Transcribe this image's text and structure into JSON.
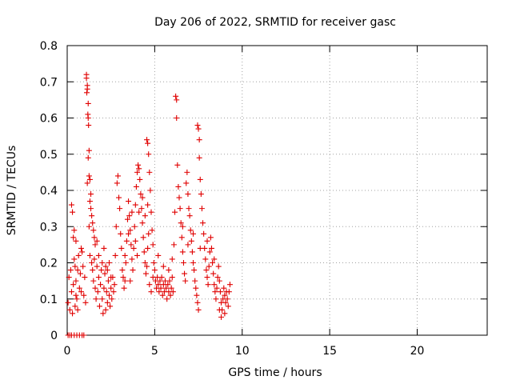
{
  "chart_data": {
    "type": "scatter",
    "title": "Day 206 of 2022, SRMTID for receiver gasc",
    "xlabel": "GPS time / hours",
    "ylabel": "SRMTID / TECUs",
    "xlim": [
      0,
      24
    ],
    "ylim": [
      0,
      0.8
    ],
    "xticks": [
      0,
      5,
      10,
      15,
      20
    ],
    "yticks": [
      0,
      0.1,
      0.2,
      0.3,
      0.4,
      0.5,
      0.6,
      0.7,
      0.8
    ],
    "xtick_labels": [
      "0",
      "5",
      "10",
      "15",
      "20"
    ],
    "ytick_labels": [
      "0",
      "0.1",
      "0.2",
      "0.3",
      "0.4",
      "0.5",
      "0.6",
      "0.7",
      "0.8"
    ],
    "grid": true,
    "marker": "+",
    "color": "#e00000",
    "series": [
      {
        "name": "SRMTID",
        "points": [
          [
            0.05,
            0.0
          ],
          [
            0.15,
            0.0
          ],
          [
            0.25,
            0.0
          ],
          [
            0.4,
            0.0
          ],
          [
            0.55,
            0.0
          ],
          [
            0.7,
            0.0
          ],
          [
            0.85,
            0.0
          ],
          [
            0.95,
            0.0
          ],
          [
            0.05,
            0.09
          ],
          [
            0.1,
            0.16
          ],
          [
            0.15,
            0.07
          ],
          [
            0.2,
            0.18
          ],
          [
            0.25,
            0.12
          ],
          [
            0.3,
            0.06
          ],
          [
            0.35,
            0.14
          ],
          [
            0.4,
            0.21
          ],
          [
            0.45,
            0.08
          ],
          [
            0.5,
            0.11
          ],
          [
            0.25,
            0.36
          ],
          [
            0.3,
            0.34
          ],
          [
            0.35,
            0.27
          ],
          [
            0.4,
            0.29
          ],
          [
            0.45,
            0.19
          ],
          [
            0.5,
            0.15
          ],
          [
            0.55,
            0.1
          ],
          [
            0.6,
            0.07
          ],
          [
            0.65,
            0.22
          ],
          [
            0.7,
            0.13
          ],
          [
            0.75,
            0.17
          ],
          [
            0.8,
            0.24
          ],
          [
            0.85,
            0.23
          ],
          [
            0.9,
            0.19
          ],
          [
            0.95,
            0.11
          ],
          [
            1.0,
            0.16
          ],
          [
            1.05,
            0.09
          ],
          [
            0.5,
            0.26
          ],
          [
            0.6,
            0.18
          ],
          [
            0.8,
            0.12
          ],
          [
            1.1,
            0.72
          ],
          [
            1.1,
            0.71
          ],
          [
            1.15,
            0.69
          ],
          [
            1.15,
            0.68
          ],
          [
            1.12,
            0.67
          ],
          [
            1.2,
            0.64
          ],
          [
            1.18,
            0.61
          ],
          [
            1.2,
            0.6
          ],
          [
            1.22,
            0.58
          ],
          [
            1.25,
            0.51
          ],
          [
            1.2,
            0.49
          ],
          [
            1.25,
            0.44
          ],
          [
            1.3,
            0.43
          ],
          [
            1.35,
            0.39
          ],
          [
            1.3,
            0.37
          ],
          [
            1.35,
            0.35
          ],
          [
            1.4,
            0.33
          ],
          [
            1.45,
            0.31
          ],
          [
            1.5,
            0.29
          ],
          [
            1.55,
            0.27
          ],
          [
            1.15,
            0.42
          ],
          [
            1.25,
            0.3
          ],
          [
            1.3,
            0.22
          ],
          [
            1.4,
            0.2
          ],
          [
            1.45,
            0.18
          ],
          [
            1.5,
            0.15
          ],
          [
            1.6,
            0.13
          ],
          [
            1.65,
            0.1
          ],
          [
            1.55,
            0.21
          ],
          [
            1.6,
            0.25
          ],
          [
            1.7,
            0.19
          ],
          [
            1.75,
            0.12
          ],
          [
            1.8,
            0.16
          ],
          [
            1.85,
            0.08
          ],
          [
            1.9,
            0.14
          ],
          [
            1.95,
            0.18
          ],
          [
            2.0,
            0.1
          ],
          [
            2.05,
            0.06
          ],
          [
            2.1,
            0.13
          ],
          [
            2.15,
            0.17
          ],
          [
            2.2,
            0.07
          ],
          [
            2.25,
            0.12
          ],
          [
            2.3,
            0.09
          ],
          [
            2.35,
            0.15
          ],
          [
            2.4,
            0.11
          ],
          [
            2.45,
            0.08
          ],
          [
            2.5,
            0.13
          ],
          [
            2.55,
            0.1
          ],
          [
            2.6,
            0.16
          ],
          [
            2.65,
            0.12
          ],
          [
            1.7,
            0.26
          ],
          [
            1.8,
            0.22
          ],
          [
            2.0,
            0.2
          ],
          [
            2.1,
            0.24
          ],
          [
            2.2,
            0.19
          ],
          [
            2.3,
            0.18
          ],
          [
            2.4,
            0.2
          ],
          [
            2.5,
            0.16
          ],
          [
            2.7,
            0.14
          ],
          [
            2.75,
            0.22
          ],
          [
            2.8,
            0.3
          ],
          [
            2.85,
            0.42
          ],
          [
            2.9,
            0.44
          ],
          [
            2.95,
            0.38
          ],
          [
            3.0,
            0.35
          ],
          [
            3.05,
            0.28
          ],
          [
            3.1,
            0.24
          ],
          [
            3.15,
            0.18
          ],
          [
            3.2,
            0.16
          ],
          [
            3.25,
            0.13
          ],
          [
            3.3,
            0.15
          ],
          [
            3.35,
            0.2
          ],
          [
            3.4,
            0.26
          ],
          [
            3.45,
            0.32
          ],
          [
            3.5,
            0.37
          ],
          [
            3.55,
            0.33
          ],
          [
            3.6,
            0.29
          ],
          [
            3.65,
            0.25
          ],
          [
            3.7,
            0.21
          ],
          [
            3.75,
            0.18
          ],
          [
            3.8,
            0.24
          ],
          [
            3.85,
            0.3
          ],
          [
            3.9,
            0.36
          ],
          [
            3.95,
            0.41
          ],
          [
            4.0,
            0.45
          ],
          [
            4.05,
            0.47
          ],
          [
            4.1,
            0.46
          ],
          [
            4.15,
            0.43
          ],
          [
            4.2,
            0.39
          ],
          [
            4.25,
            0.35
          ],
          [
            4.3,
            0.31
          ],
          [
            4.35,
            0.27
          ],
          [
            4.4,
            0.23
          ],
          [
            4.45,
            0.2
          ],
          [
            4.5,
            0.17
          ],
          [
            4.55,
            0.19
          ],
          [
            4.6,
            0.24
          ],
          [
            4.65,
            0.28
          ],
          [
            3.3,
            0.22
          ],
          [
            3.5,
            0.28
          ],
          [
            3.7,
            0.34
          ],
          [
            3.9,
            0.26
          ],
          [
            4.1,
            0.34
          ],
          [
            4.3,
            0.38
          ],
          [
            4.45,
            0.33
          ],
          [
            4.6,
            0.36
          ],
          [
            3.6,
            0.15
          ],
          [
            4.0,
            0.22
          ],
          [
            4.55,
            0.54
          ],
          [
            4.6,
            0.53
          ],
          [
            4.65,
            0.5
          ],
          [
            4.7,
            0.45
          ],
          [
            4.75,
            0.4
          ],
          [
            4.8,
            0.34
          ],
          [
            4.85,
            0.29
          ],
          [
            4.9,
            0.25
          ],
          [
            4.95,
            0.2
          ],
          [
            5.0,
            0.18
          ],
          [
            4.7,
            0.14
          ],
          [
            4.8,
            0.12
          ],
          [
            4.9,
            0.16
          ],
          [
            5.05,
            0.15
          ],
          [
            5.1,
            0.13
          ],
          [
            5.15,
            0.16
          ],
          [
            5.2,
            0.14
          ],
          [
            5.25,
            0.12
          ],
          [
            5.3,
            0.15
          ],
          [
            5.35,
            0.13
          ],
          [
            5.4,
            0.16
          ],
          [
            5.45,
            0.11
          ],
          [
            5.5,
            0.14
          ],
          [
            5.55,
            0.12
          ],
          [
            5.6,
            0.15
          ],
          [
            5.65,
            0.13
          ],
          [
            5.7,
            0.1
          ],
          [
            5.75,
            0.14
          ],
          [
            5.8,
            0.12
          ],
          [
            5.85,
            0.15
          ],
          [
            5.9,
            0.11
          ],
          [
            5.95,
            0.13
          ],
          [
            6.0,
            0.16
          ],
          [
            6.05,
            0.12
          ],
          [
            5.2,
            0.22
          ],
          [
            5.5,
            0.19
          ],
          [
            5.8,
            0.18
          ],
          [
            6.0,
            0.21
          ],
          [
            6.1,
            0.25
          ],
          [
            6.15,
            0.34
          ],
          [
            6.2,
            0.66
          ],
          [
            6.25,
            0.65
          ],
          [
            6.25,
            0.6
          ],
          [
            6.3,
            0.47
          ],
          [
            6.35,
            0.41
          ],
          [
            6.4,
            0.38
          ],
          [
            6.45,
            0.35
          ],
          [
            6.5,
            0.31
          ],
          [
            6.55,
            0.27
          ],
          [
            6.6,
            0.23
          ],
          [
            6.65,
            0.2
          ],
          [
            6.7,
            0.17
          ],
          [
            6.75,
            0.15
          ],
          [
            6.8,
            0.42
          ],
          [
            6.85,
            0.45
          ],
          [
            6.9,
            0.39
          ],
          [
            6.95,
            0.35
          ],
          [
            7.0,
            0.33
          ],
          [
            7.05,
            0.29
          ],
          [
            7.1,
            0.26
          ],
          [
            7.15,
            0.23
          ],
          [
            7.2,
            0.2
          ],
          [
            7.25,
            0.18
          ],
          [
            7.3,
            0.15
          ],
          [
            7.35,
            0.13
          ],
          [
            7.4,
            0.11
          ],
          [
            7.45,
            0.09
          ],
          [
            7.5,
            0.07
          ],
          [
            7.45,
            0.58
          ],
          [
            7.5,
            0.57
          ],
          [
            7.55,
            0.54
          ],
          [
            7.55,
            0.49
          ],
          [
            7.6,
            0.43
          ],
          [
            7.65,
            0.39
          ],
          [
            7.7,
            0.35
          ],
          [
            7.75,
            0.31
          ],
          [
            7.8,
            0.28
          ],
          [
            7.85,
            0.24
          ],
          [
            7.9,
            0.21
          ],
          [
            7.95,
            0.18
          ],
          [
            8.0,
            0.16
          ],
          [
            8.05,
            0.14
          ],
          [
            8.1,
            0.19
          ],
          [
            8.15,
            0.23
          ],
          [
            8.2,
            0.27
          ],
          [
            8.25,
            0.24
          ],
          [
            8.3,
            0.2
          ],
          [
            8.35,
            0.17
          ],
          [
            8.4,
            0.14
          ],
          [
            8.45,
            0.12
          ],
          [
            8.5,
            0.1
          ],
          [
            8.55,
            0.13
          ],
          [
            8.6,
            0.16
          ],
          [
            8.65,
            0.19
          ],
          [
            8.7,
            0.15
          ],
          [
            8.75,
            0.12
          ],
          [
            8.8,
            0.09
          ],
          [
            8.85,
            0.07
          ],
          [
            8.9,
            0.1
          ],
          [
            8.95,
            0.13
          ],
          [
            9.0,
            0.11
          ],
          [
            9.05,
            0.09
          ],
          [
            9.1,
            0.12
          ],
          [
            9.15,
            0.1
          ],
          [
            9.2,
            0.08
          ],
          [
            9.25,
            0.12
          ],
          [
            9.3,
            0.14
          ],
          [
            6.6,
            0.3
          ],
          [
            6.9,
            0.25
          ],
          [
            7.2,
            0.28
          ],
          [
            7.6,
            0.24
          ],
          [
            8.0,
            0.26
          ],
          [
            8.4,
            0.21
          ],
          [
            8.7,
            0.07
          ],
          [
            8.8,
            0.05
          ],
          [
            9.0,
            0.06
          ]
        ]
      }
    ]
  }
}
